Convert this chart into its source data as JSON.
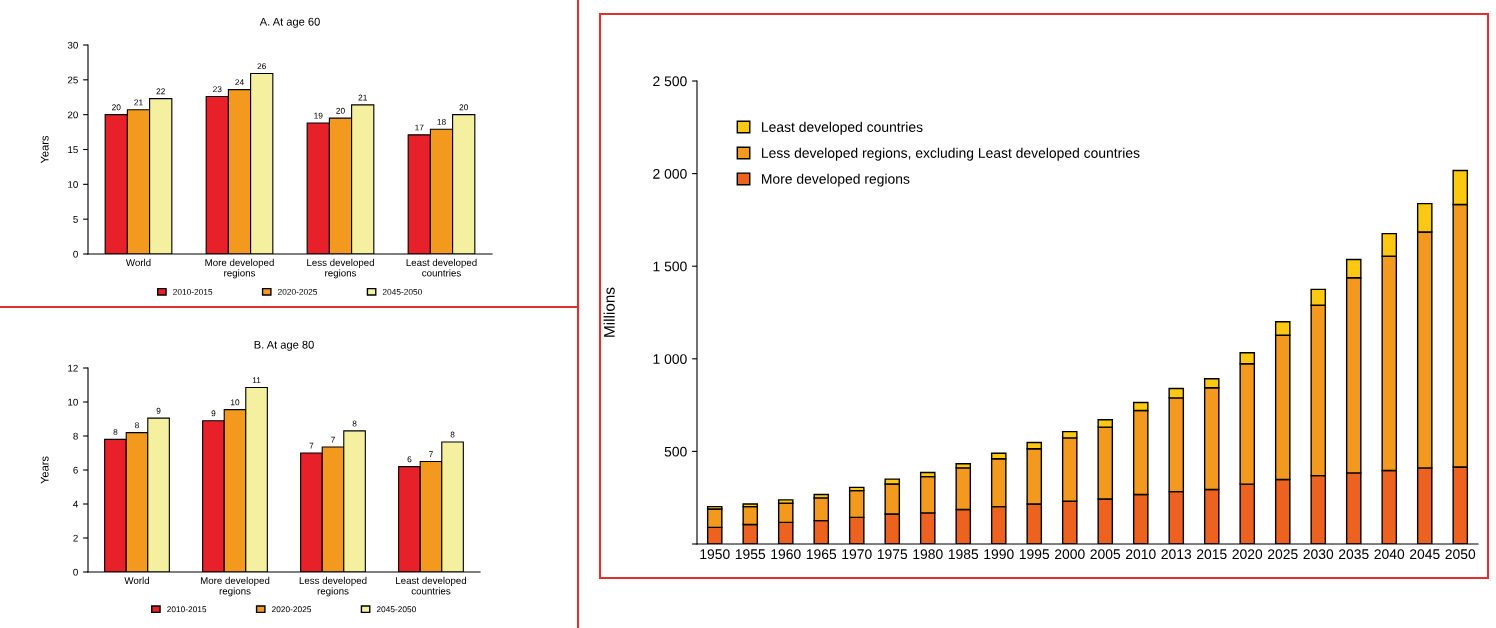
{
  "chart_data": [
    {
      "type": "bar",
      "title": "A. At age 60",
      "ylabel": "Years",
      "categories": [
        "World",
        "More developed\nregions",
        "Less developed\nregions",
        "Least developed\ncountries"
      ],
      "series": [
        {
          "name": "2010-2015",
          "color": "#e8202a",
          "values": [
            20.0,
            22.6,
            18.8,
            17.1
          ],
          "value_labels": [
            "20",
            "23",
            "19",
            "17"
          ]
        },
        {
          "name": "2020-2025",
          "color": "#f39a1e",
          "values": [
            20.7,
            23.6,
            19.5,
            17.9
          ],
          "value_labels": [
            "21",
            "24",
            "20",
            "18"
          ]
        },
        {
          "name": "2045-2050",
          "color": "#f5f0a0",
          "values": [
            22.3,
            25.9,
            21.4,
            20.0
          ],
          "value_labels": [
            "22",
            "26",
            "21",
            "20"
          ]
        }
      ],
      "ylim": [
        0,
        30
      ],
      "yticks": [
        0,
        5,
        10,
        15,
        20,
        25,
        30
      ],
      "legend": "bottom",
      "grid": false
    },
    {
      "type": "bar",
      "title": "B. At age 80",
      "ylabel": "Years",
      "categories": [
        "World",
        "More developed\nregions",
        "Less developed\nregions",
        "Least developed\ncountries"
      ],
      "series": [
        {
          "name": "2010-2015",
          "color": "#e8202a",
          "values": [
            7.8,
            8.9,
            7.0,
            6.2
          ],
          "value_labels": [
            "8",
            "9",
            "7",
            "6"
          ]
        },
        {
          "name": "2020-2025",
          "color": "#f39a1e",
          "values": [
            8.2,
            9.55,
            7.35,
            6.5
          ],
          "value_labels": [
            "8",
            "10",
            "7",
            "7"
          ]
        },
        {
          "name": "2045-2050",
          "color": "#f5f0a0",
          "values": [
            9.05,
            10.85,
            8.3,
            7.65
          ],
          "value_labels": [
            "9",
            "11",
            "8",
            "8"
          ]
        }
      ],
      "ylim": [
        0,
        12
      ],
      "yticks": [
        0,
        2,
        4,
        6,
        8,
        10,
        12
      ],
      "legend": "bottom",
      "grid": false
    },
    {
      "type": "bar",
      "stacked": true,
      "ylabel": "Millions",
      "categories": [
        "1950",
        "1955",
        "1960",
        "1965",
        "1970",
        "1975",
        "1980",
        "1985",
        "1990",
        "1995",
        "2000",
        "2005",
        "2010",
        "2013",
        "2015",
        "2020",
        "2025",
        "2030",
        "2035",
        "2040",
        "2045",
        "2050"
      ],
      "series": [
        {
          "name": "More developed regions",
          "color": "#ee6220",
          "values": [
            90,
            105,
            117,
            126,
            144,
            162,
            168,
            186,
            202,
            216,
            231,
            243,
            267,
            283,
            294,
            323,
            348,
            369,
            384,
            397,
            411,
            416
          ]
        },
        {
          "name": "Less developed regions, excluding Least developed countries",
          "color": "#f39a1e",
          "values": [
            99,
            97,
            103,
            123,
            144,
            162,
            196,
            225,
            258,
            298,
            342,
            388,
            454,
            506,
            550,
            650,
            779,
            920,
            1054,
            1157,
            1274,
            1417
          ]
        },
        {
          "name": "Least developed countries",
          "color": "#fcc810",
          "values": [
            13,
            14,
            18,
            18,
            18,
            26,
            22,
            22,
            30,
            34,
            34,
            40,
            43,
            51,
            48,
            60,
            73,
            86,
            98,
            122,
            153,
            184
          ]
        }
      ],
      "ylim": [
        0,
        2500
      ],
      "yticks": [
        {
          "value": 0,
          "label": null
        },
        {
          "value": 500,
          "label": "500"
        },
        {
          "value": 1000,
          "label": "1 000"
        },
        {
          "value": 1500,
          "label": "1 500"
        },
        {
          "value": 2000,
          "label": "2 000"
        },
        {
          "value": 2500,
          "label": "2 500"
        }
      ],
      "legend": "top left",
      "grid": false
    }
  ]
}
